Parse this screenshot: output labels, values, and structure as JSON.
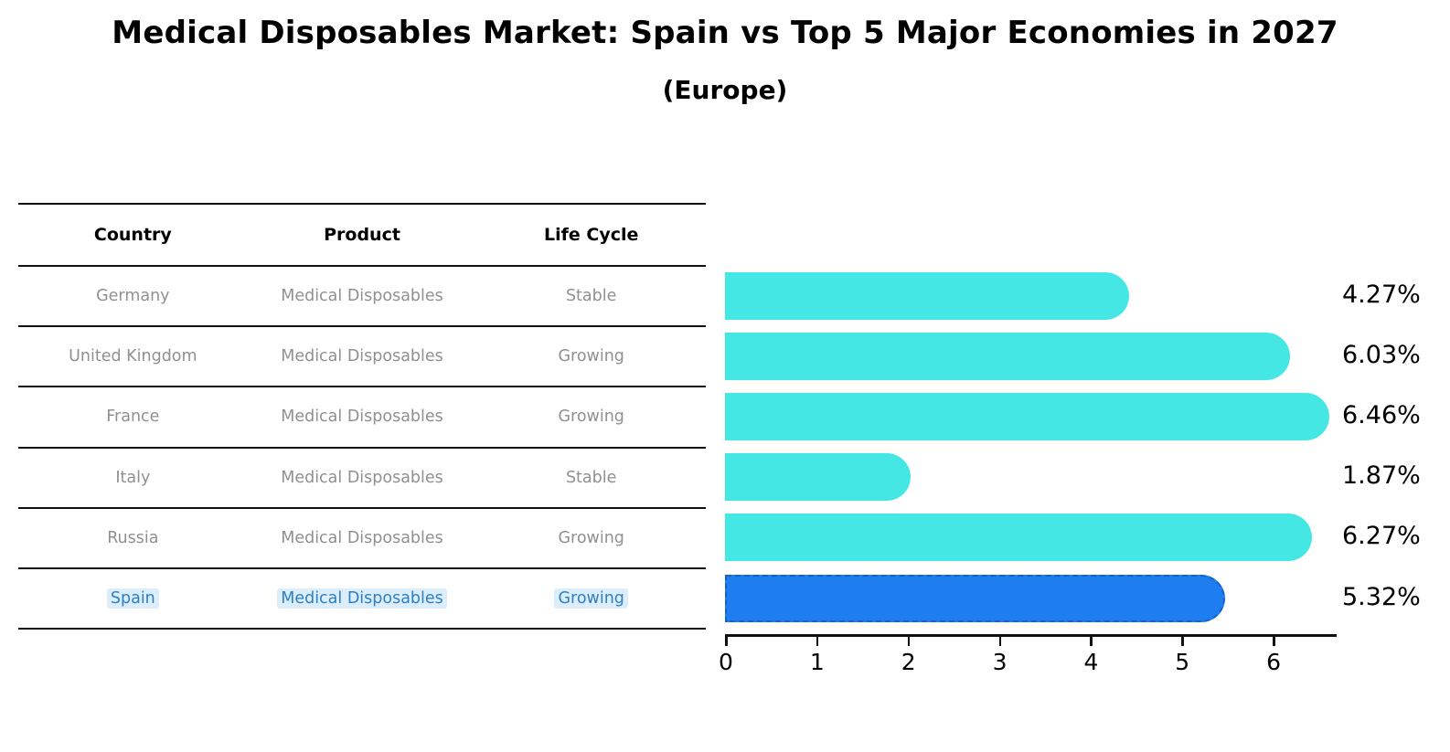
{
  "header": {
    "title": "Medical Disposables Market: Spain vs Top 5 Major Economies in 2027",
    "subtitle": "(Europe)"
  },
  "table": {
    "columns": [
      "Country",
      "Product",
      "Life Cycle"
    ],
    "rows": [
      {
        "country": "Germany",
        "product": "Medical Disposables",
        "life_cycle": "Stable",
        "highlighted": false
      },
      {
        "country": "United Kingdom",
        "product": "Medical Disposables",
        "life_cycle": "Growing",
        "highlighted": false
      },
      {
        "country": "France",
        "product": "Medical Disposables",
        "life_cycle": "Growing",
        "highlighted": false
      },
      {
        "country": "Italy",
        "product": "Medical Disposables",
        "life_cycle": "Stable",
        "highlighted": false
      },
      {
        "country": "Russia",
        "product": "Medical Disposables",
        "life_cycle": "Growing",
        "highlighted": false
      },
      {
        "country": "Spain",
        "product": "Medical Disposables",
        "life_cycle": "Growing",
        "highlighted": true
      }
    ]
  },
  "chart_data": {
    "type": "bar",
    "orientation": "horizontal",
    "title": "Medical Disposables Market: Spain vs Top 5 Major Economies in 2027",
    "subtitle": "(Europe)",
    "categories": [
      "Germany",
      "United Kingdom",
      "France",
      "Italy",
      "Russia",
      "Spain"
    ],
    "values": [
      4.27,
      6.03,
      6.46,
      1.87,
      6.27,
      5.32
    ],
    "value_labels": [
      "4.27%",
      "6.03%",
      "6.46%",
      "1.87%",
      "6.27%",
      "5.32%"
    ],
    "x_ticks": [
      0,
      1,
      2,
      3,
      4,
      5,
      6
    ],
    "xlim": [
      0,
      6.7
    ],
    "grid": false,
    "legend": false,
    "highlight_index": 5,
    "bar_color": "#45e7e5",
    "highlight_bar_color": "#1e7ef0",
    "highlight_bar_border_color": "#1161ce",
    "highlight_text_color": "#2e7fc2",
    "table_text_color": "#909090",
    "axis_color": "#111111"
  }
}
